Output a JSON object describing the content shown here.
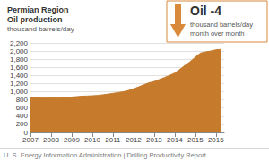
{
  "chart_data": {
    "type": "area",
    "title": "Permian Region",
    "subtitle": "Oil production",
    "y_label": "thousand barrels/day",
    "annotations": [
      "Oil -4",
      "thousand barrels/day",
      "month over month"
    ],
    "footer": "U. S. Energy Information Administration | Drilling Productivity Report",
    "x": [
      2007.0,
      2007.25,
      2007.5,
      2007.75,
      2008.0,
      2008.25,
      2008.5,
      2008.75,
      2009.0,
      2009.25,
      2009.5,
      2009.75,
      2010.0,
      2010.25,
      2010.5,
      2010.75,
      2011.0,
      2011.25,
      2011.5,
      2011.75,
      2012.0,
      2012.25,
      2012.5,
      2012.75,
      2013.0,
      2013.25,
      2013.5,
      2013.75,
      2014.0,
      2014.25,
      2014.5,
      2014.75,
      2015.0,
      2015.25,
      2015.5,
      2015.75,
      2016.0,
      2016.25
    ],
    "values": [
      850,
      845,
      850,
      855,
      850,
      855,
      860,
      850,
      870,
      880,
      890,
      895,
      900,
      910,
      925,
      940,
      960,
      980,
      1000,
      1030,
      1070,
      1120,
      1170,
      1220,
      1250,
      1300,
      1350,
      1400,
      1460,
      1550,
      1650,
      1740,
      1850,
      1950,
      1980,
      2000,
      2030,
      2040
    ],
    "color": "#c67a2c",
    "xlim": [
      2007,
      2016.4
    ],
    "xticks": [
      2007,
      2008,
      2009,
      2010,
      2011,
      2012,
      2013,
      2014,
      2015,
      2016
    ],
    "ylim": [
      0,
      2200
    ],
    "yticks": [
      0,
      200,
      400,
      600,
      800,
      {
        "value": 1000,
        "label": "1,000"
      },
      {
        "value": 1200,
        "label": "1,200"
      },
      {
        "value": 1400,
        "label": "1,400"
      },
      {
        "value": 1600,
        "label": "1,600"
      },
      {
        "value": 1800,
        "label": "1,800"
      },
      {
        "value": 2000,
        "label": "2,000"
      },
      {
        "value": 2200,
        "label": "2,200"
      }
    ],
    "grid": true
  }
}
